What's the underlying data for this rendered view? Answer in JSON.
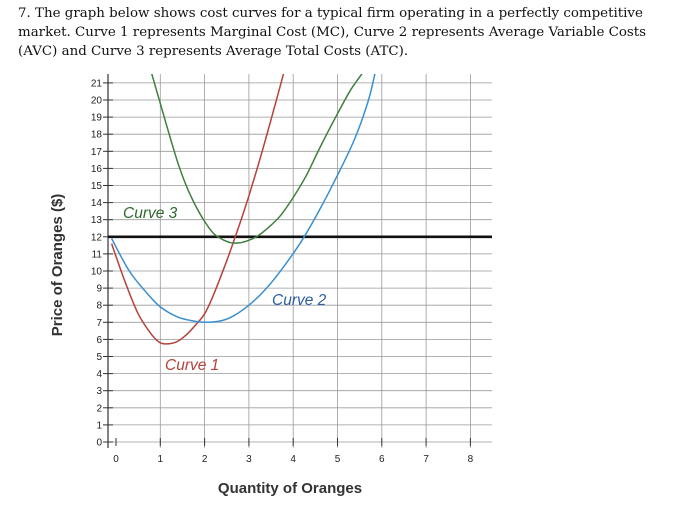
{
  "question": {
    "line1": "7. The graph below shows cost curves for a typical firm operating in a perfectly competitive",
    "line2": "market. Curve 1 represents Marginal Cost (MC), Curve 2 represents Average Variable Costs",
    "line3": "(AVC) and Curve 3 represents Average Total Costs (ATC)."
  },
  "chart_data": {
    "type": "line",
    "title": "",
    "xlabel": "Quantity of Oranges",
    "ylabel": "Price of Oranges ($)",
    "xlim": [
      0,
      8.5
    ],
    "ylim": [
      0,
      21.5
    ],
    "x_ticks": [
      "0",
      "1",
      "2",
      "3",
      "4",
      "5",
      "6",
      "7",
      "8"
    ],
    "y_ticks": [
      "0",
      "1",
      "2",
      "3",
      "4",
      "5",
      "6",
      "7",
      "8",
      "9",
      "10",
      "11",
      "12",
      "13",
      "14",
      "15",
      "16",
      "17",
      "18",
      "19",
      "20",
      "21"
    ],
    "grid": true,
    "hline": {
      "y": 12,
      "color": "#111111"
    },
    "series": [
      {
        "name": "Curve 1",
        "label": "Curve 1",
        "represents": "MC",
        "color": "#b5423a",
        "label_color": "#b5423a",
        "x": [
          -0.1,
          0.2,
          0.5,
          0.8,
          1.0,
          1.2,
          1.4,
          1.6,
          1.8,
          2.0,
          2.2,
          2.5,
          2.8,
          3.0,
          3.3,
          3.6,
          3.8
        ],
        "y": [
          11.6,
          9.4,
          7.5,
          6.3,
          5.8,
          5.75,
          5.9,
          6.3,
          6.85,
          7.5,
          8.6,
          10.6,
          12.8,
          14.4,
          17.0,
          19.8,
          21.7
        ]
      },
      {
        "name": "Curve 2",
        "label": "Curve 2",
        "represents": "AVC",
        "color": "#3a8fcf",
        "label_color": "#2c5f9e",
        "x": [
          -0.1,
          0.3,
          0.7,
          1.0,
          1.4,
          1.8,
          2.0,
          2.3,
          2.6,
          3.0,
          3.4,
          3.8,
          4.2,
          4.6,
          5.0,
          5.4,
          5.7,
          5.85
        ],
        "y": [
          11.9,
          10.0,
          8.7,
          7.9,
          7.3,
          7.05,
          7.0,
          7.05,
          7.3,
          8.0,
          9.0,
          10.3,
          11.8,
          13.6,
          15.6,
          17.8,
          20.0,
          21.6
        ]
      },
      {
        "name": "Curve 3",
        "label": "Curve 3",
        "represents": "ATC",
        "color": "#3f7f3f",
        "label_color": "#2f6a2f",
        "x": [
          0.8,
          1.0,
          1.2,
          1.4,
          1.6,
          1.8,
          2.0,
          2.2,
          2.4,
          2.6,
          2.8,
          3.0,
          3.2,
          3.4,
          3.7,
          4.0,
          4.3,
          4.6,
          5.0,
          5.3,
          5.6
        ],
        "y": [
          21.6,
          19.8,
          18.0,
          16.3,
          14.9,
          13.8,
          12.9,
          12.2,
          11.85,
          11.65,
          11.65,
          11.8,
          12.05,
          12.45,
          13.2,
          14.3,
          15.6,
          17.2,
          19.2,
          20.6,
          21.7
        ]
      }
    ]
  }
}
